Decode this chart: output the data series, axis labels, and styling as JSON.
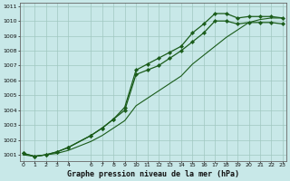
{
  "title": "Graphe pression niveau de la mer (hPa)",
  "bg_color": "#c8e8e8",
  "grid_color": "#a0c8c0",
  "line_color": "#1a5c1a",
  "xlim": [
    -0.3,
    23.3
  ],
  "ylim": [
    1000.6,
    1011.2
  ],
  "xticks": [
    0,
    1,
    2,
    3,
    4,
    6,
    7,
    8,
    9,
    10,
    11,
    12,
    13,
    14,
    15,
    16,
    17,
    18,
    19,
    20,
    21,
    22,
    23
  ],
  "yticks": [
    1001,
    1002,
    1003,
    1004,
    1005,
    1006,
    1007,
    1008,
    1009,
    1010,
    1011
  ],
  "series1_x": [
    0,
    1,
    2,
    3,
    4,
    6,
    7,
    8,
    9,
    10,
    11,
    12,
    13,
    14,
    15,
    16,
    17,
    18,
    19,
    20,
    21,
    22,
    23
  ],
  "series1_y": [
    1001.1,
    1000.9,
    1001.0,
    1001.2,
    1001.5,
    1002.3,
    1002.8,
    1003.4,
    1004.2,
    1006.7,
    1007.1,
    1007.5,
    1007.9,
    1008.3,
    1009.2,
    1009.8,
    1010.5,
    1010.5,
    1010.2,
    1010.3,
    1010.3,
    1010.3,
    1010.2
  ],
  "series2_x": [
    0,
    1,
    2,
    3,
    4,
    6,
    7,
    8,
    9,
    10,
    11,
    12,
    13,
    14,
    15,
    16,
    17,
    18,
    19,
    20,
    21,
    22,
    23
  ],
  "series2_y": [
    1001.1,
    1000.9,
    1001.0,
    1001.2,
    1001.5,
    1002.3,
    1002.8,
    1003.4,
    1004.0,
    1006.4,
    1006.7,
    1007.0,
    1007.5,
    1008.0,
    1008.6,
    1009.2,
    1010.0,
    1010.0,
    1009.8,
    1009.9,
    1009.9,
    1009.9,
    1009.8
  ],
  "series3_x": [
    0,
    1,
    2,
    3,
    4,
    6,
    7,
    8,
    9,
    10,
    11,
    12,
    13,
    14,
    15,
    16,
    17,
    18,
    19,
    20,
    21,
    22,
    23
  ],
  "series3_y": [
    1001.0,
    1000.9,
    1001.0,
    1001.1,
    1001.3,
    1001.9,
    1002.3,
    1002.8,
    1003.3,
    1004.3,
    1004.8,
    1005.3,
    1005.8,
    1006.3,
    1007.1,
    1007.7,
    1008.3,
    1008.9,
    1009.4,
    1009.9,
    1010.1,
    1010.2,
    1010.2
  ]
}
